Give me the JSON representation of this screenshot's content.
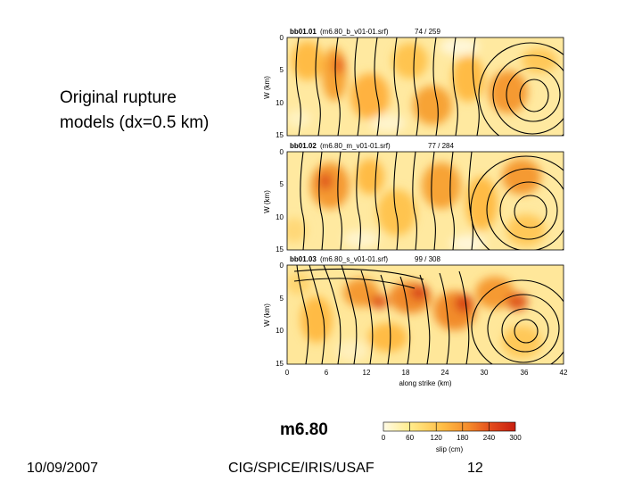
{
  "caption": {
    "line1": "Original rupture",
    "line2": "models (dx=0.5 km)"
  },
  "figure": {
    "panels": [
      {
        "title": "bb01.01",
        "subtitle": "(m6.80_b_v01-01.srf)",
        "count": "74 / 259"
      },
      {
        "title": "bb01.02",
        "subtitle": "(m6.80_m_v01-01.srf)",
        "count": "77 / 284"
      },
      {
        "title": "bb01.03",
        "subtitle": "(m6.80_s_v01-01.srf)",
        "count": "99 / 308"
      }
    ],
    "y_label": "W (km)",
    "y_ticks": [
      "0",
      "5",
      "10",
      "15"
    ],
    "x_label": "along strike (km)",
    "x_ticks": [
      "0",
      "6",
      "12",
      "18",
      "24",
      "30",
      "36",
      "42"
    ]
  },
  "magnitude": "m6.80",
  "colorbar": {
    "ticks": [
      "0",
      "60",
      "120",
      "180",
      "240",
      "300"
    ],
    "label": "slip (cm)",
    "colors": [
      "#fffbe6",
      "#ffec8c",
      "#ffbd45",
      "#f58a2a",
      "#e24a1c",
      "#c81e10"
    ]
  },
  "footer": {
    "date": "10/09/2007",
    "org": "CIG/SPICE/IRIS/USAF",
    "page": "12"
  }
}
